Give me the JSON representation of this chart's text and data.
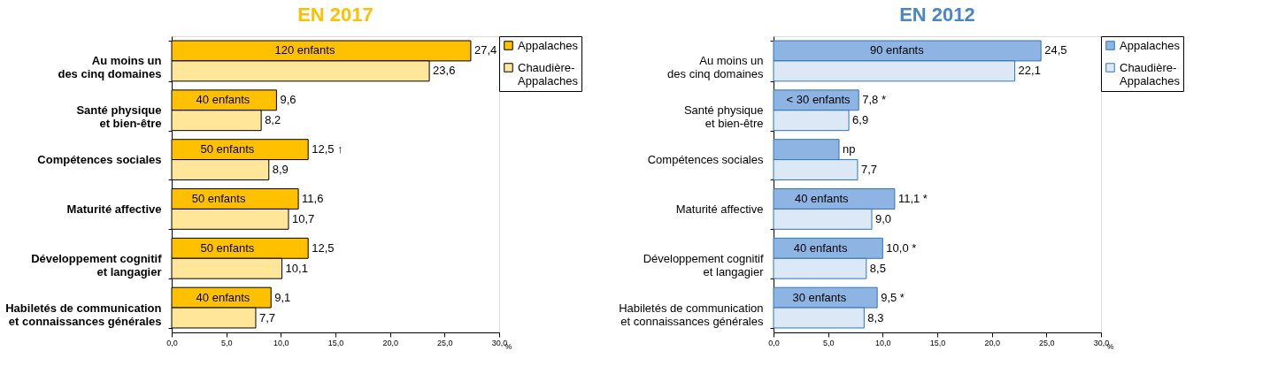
{
  "chart_data": [
    {
      "type": "bar",
      "orientation": "horizontal",
      "title": "EN 2017",
      "xlabel": "%",
      "categories": [
        "Au moins un\ndes cinq domaines",
        "Santé physique\net bien-être",
        "Compétences sociales",
        "Maturité affective",
        "Développement cognitif\net langagier",
        "Habiletés de communication\net connaissances générales"
      ],
      "series": [
        {
          "name": "Appalaches",
          "color": "#ffc000",
          "values": [
            27.4,
            9.6,
            12.5,
            11.6,
            12.5,
            9.1
          ],
          "value_labels": [
            "27,4",
            "9,6",
            "12,5 ↑",
            "11,6",
            "12,5",
            "9,1"
          ]
        },
        {
          "name": "Chaudière-Appalaches",
          "color": "#ffe699",
          "values": [
            23.6,
            8.2,
            8.9,
            10.7,
            10.1,
            7.7
          ],
          "value_labels": [
            "23,6",
            "8,2",
            "8,9",
            "10,7",
            "10,1",
            "7,7"
          ]
        }
      ],
      "xlim": [
        0,
        30
      ],
      "xticks": [
        {
          "value": 0,
          "label": "0,0"
        },
        {
          "value": 5,
          "label": "5,0"
        },
        {
          "value": 10,
          "label": "10,0"
        },
        {
          "value": 15,
          "label": "15,0"
        },
        {
          "value": 20,
          "label": "20,0"
        },
        {
          "value": 25,
          "label": "25,0"
        },
        {
          "value": 30,
          "label": "30,0"
        }
      ],
      "annotations": [
        {
          "text": "120 enfants",
          "x": 12.2,
          "y": "Au moins un\ndes cinq domaines"
        },
        {
          "text": "40 enfants",
          "x": 4.7,
          "y": "Santé physique\net bien-être"
        },
        {
          "text": "50 enfants",
          "x": 5.1,
          "y": "Compétences sociales"
        },
        {
          "text": "50 enfants",
          "x": 4.3,
          "y": "Maturité affective"
        },
        {
          "text": "50 enfants",
          "x": 5.1,
          "y": "Développement cognitif\net langagier"
        },
        {
          "text": "40 enfants",
          "x": 4.7,
          "y": "Habiletés de communication\net connaissances générales"
        }
      ],
      "legend": "right",
      "grid": false
    },
    {
      "type": "bar",
      "orientation": "horizontal",
      "title": "EN 2012",
      "xlabel": "%",
      "categories": [
        "Au moins un\ndes cinq domaines",
        "Santé physique\net bien-être",
        "Compétences sociales",
        "Maturité affective",
        "Développement cognitif\net langagier",
        "Habiletés de communication\net connaissances générales"
      ],
      "series": [
        {
          "name": "Appalaches",
          "color": "#8eb4e3",
          "values": [
            24.5,
            7.8,
            6.0,
            11.1,
            10.0,
            9.5
          ],
          "value_labels": [
            "24,5",
            "7,8 *",
            "np",
            "11,1 *",
            "10,0 *",
            "9,5 *"
          ]
        },
        {
          "name": "Chaudière-Appalaches",
          "color": "#dde8f6",
          "values": [
            22.1,
            6.9,
            7.7,
            9.0,
            8.5,
            8.3
          ],
          "value_labels": [
            "22,1",
            "6,9",
            "7,7",
            "9,0",
            "8,5",
            "8,3"
          ]
        }
      ],
      "xlim": [
        0,
        30
      ],
      "xticks": [
        {
          "value": 0,
          "label": "0,0"
        },
        {
          "value": 5,
          "label": "5,0"
        },
        {
          "value": 10,
          "label": "10,0"
        },
        {
          "value": 15,
          "label": "15,0"
        },
        {
          "value": 20,
          "label": "20,0"
        },
        {
          "value": 25,
          "label": "25,0"
        },
        {
          "value": 30,
          "label": "30,0"
        }
      ],
      "annotations": [
        {
          "text": "90 enfants",
          "x": 11.3,
          "y": "Au moins un\ndes cinq domaines"
        },
        {
          "text": "< 30 enfants",
          "x": 4.1,
          "y": "Santé physique\net bien-être"
        },
        {
          "text": "40 enfants",
          "x": 4.4,
          "y": "Maturité affective"
        },
        {
          "text": "40 enfants",
          "x": 4.3,
          "y": "Développement cognitif\net langagier"
        },
        {
          "text": "30 enfants",
          "x": 4.2,
          "y": "Habiletés de communication\net connaissances générales"
        }
      ],
      "legend": "right",
      "grid": false
    }
  ]
}
